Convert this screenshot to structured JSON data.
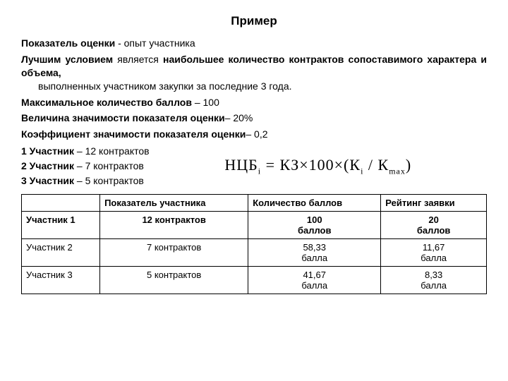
{
  "title": "Пример",
  "p1_b1": "Показатель оценки",
  "p1_rest": " - опыт участника",
  "p2_b1": "Лучшим условием",
  "p2_mid1": " является ",
  "p2_b2": "наибольшее количество контрактов сопоставимого характера и объема,",
  "p2_rest": " выполненных участником закупки за последние 3 года.",
  "p3_b": "Максимальное количество баллов",
  "p3_rest": " – 100",
  "p4_b": "Величина значимости показателя оценки",
  "p4_rest": "– 20%",
  "p5_b": "Коэффициент значимости показателя оценки",
  "p5_rest": "– 0,2",
  "l1_b": "1 Участник",
  "l1_rest": " – 12 контрактов",
  "l2_b": "2 Участник",
  "l2_rest": " – 7 контрактов",
  "l3_b": "3 Участник",
  "l3_rest": " – 5 контрактов",
  "formula_text": "НЦБ i = КЗ × 100 × ( К i / К max )",
  "table": {
    "headers": [
      "",
      "Показатель участника",
      "Количество баллов",
      "Рейтинг заявки"
    ],
    "rows": [
      {
        "c0": "Участник 1",
        "c1": "12 контрактов",
        "c2_a": "100",
        "c2_b": "баллов",
        "c3_a": "20",
        "c3_b": "баллов",
        "bold": true
      },
      {
        "c0": "Участник 2",
        "c1": "7 контрактов",
        "c2_a": "58,33",
        "c2_b": "балла",
        "c3_a": "11,67",
        "c3_b": "балла",
        "bold": false
      },
      {
        "c0": "Участник 3",
        "c1": "5 контрактов",
        "c2_a": "41,67",
        "c2_b": "балла",
        "c3_a": "8,33",
        "c3_b": "балла",
        "bold": false
      }
    ]
  }
}
